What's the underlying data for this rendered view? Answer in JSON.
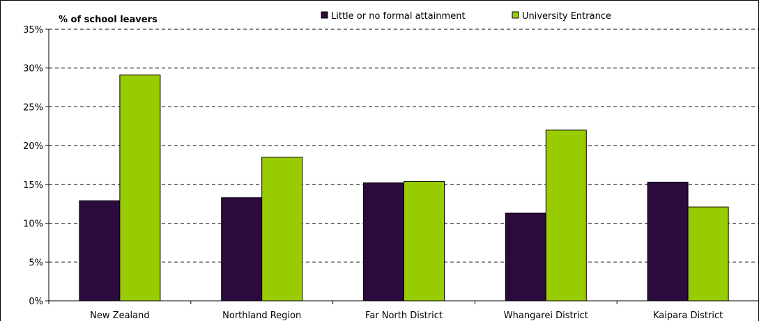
{
  "chart_data": {
    "type": "bar",
    "ylabel": "% of school leavers",
    "categories": [
      "New Zealand",
      "Northland Region",
      "Far North District",
      "Whangarei District",
      "Kaipara District"
    ],
    "series": [
      {
        "name": "Little or no formal attainment",
        "values": [
          12.9,
          13.3,
          15.2,
          11.3,
          15.3
        ],
        "color": "#2b0a3d"
      },
      {
        "name": "University Entrance",
        "values": [
          29.1,
          18.5,
          15.4,
          22.0,
          12.1
        ],
        "color": "#99cc00"
      }
    ],
    "ylim": [
      0,
      35
    ],
    "yticks": [
      "0%",
      "5%",
      "10%",
      "15%",
      "20%",
      "25%",
      "30%",
      "35%"
    ],
    "grid": true,
    "legend_position": "top"
  }
}
